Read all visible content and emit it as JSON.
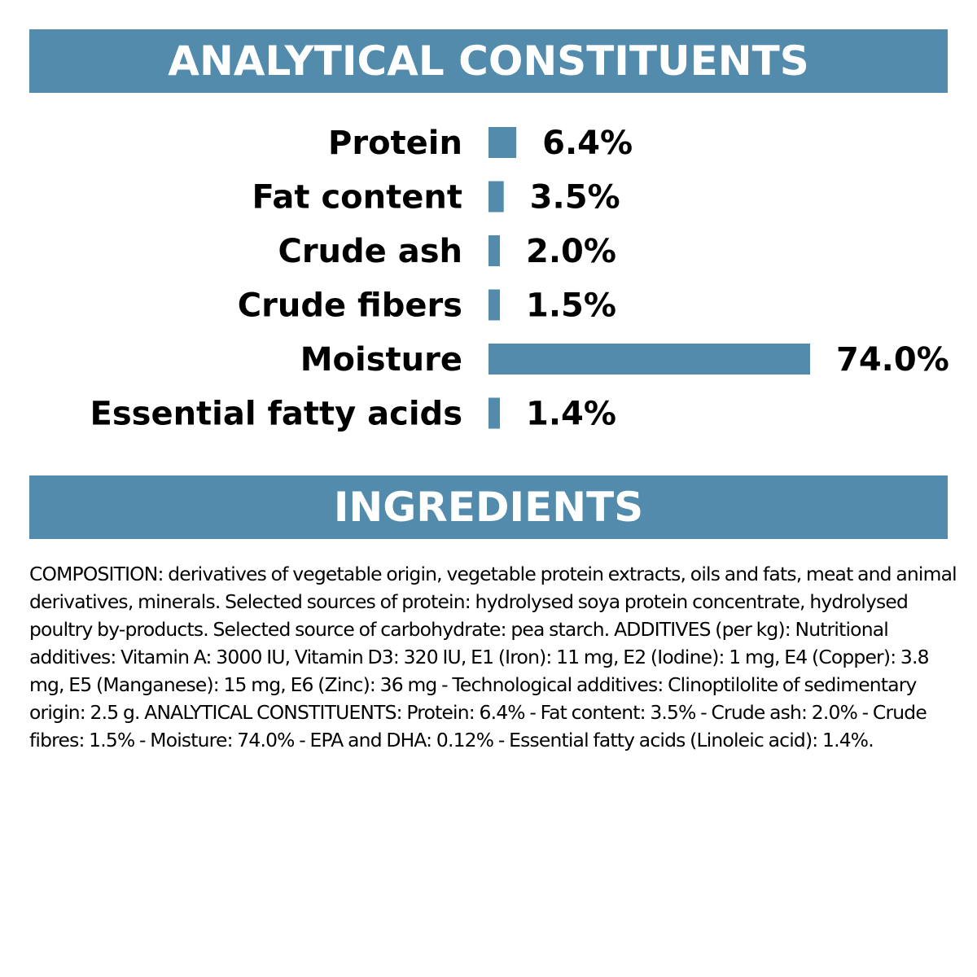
{
  "colors": {
    "accent": "#528BAB",
    "text": "#000000",
    "background": "#FFFFFF",
    "banner_text": "#FFFFFF"
  },
  "analytical": {
    "title": "ANALYTICAL CONSTITUENTS"
  },
  "chart_data": {
    "type": "bar",
    "orientation": "horizontal",
    "categories": [
      "Protein",
      "Fat content",
      "Crude ash",
      "Crude fibers",
      "Moisture",
      "Essential fatty acids"
    ],
    "values": [
      6.4,
      3.5,
      2.0,
      1.5,
      74.0,
      1.4
    ],
    "value_labels": [
      "6.4%",
      "3.5%",
      "2.0%",
      "1.5%",
      "74.0%",
      "1.4%"
    ],
    "unit": "%",
    "xlim": [
      0,
      74
    ],
    "grid": false,
    "legend": "none"
  },
  "ingredients": {
    "title": "INGREDIENTS",
    "composition": "COMPOSITION: derivatives of vegetable origin, vegetable protein extracts, oils and fats, meat and animal derivatives, minerals. Selected sources of protein: hydrolysed soya protein concentrate, hydrolysed poultry by-products. Selected source of carbohydrate: pea starch. ADDITIVES (per kg): Nutritional additives: Vitamin A: 3000 IU, Vitamin D3: 320 IU, E1 (Iron): 11 mg, E2 (Iodine): 1 mg, E4 (Copper): 3.8 mg, E5 (Manganese): 15 mg, E6 (Zinc): 36 mg - Technological additives: Clinoptilolite of sedimentary origin: 2.5 g. ANALYTICAL CONSTITUENTS: Protein: 6.4% - Fat content: 3.5% - Crude ash: 2.0% - Crude fibres: 1.5% - Moisture: 74.0% - EPA and DHA: 0.12% - Essential fatty acids (Linoleic acid): 1.4%."
  }
}
